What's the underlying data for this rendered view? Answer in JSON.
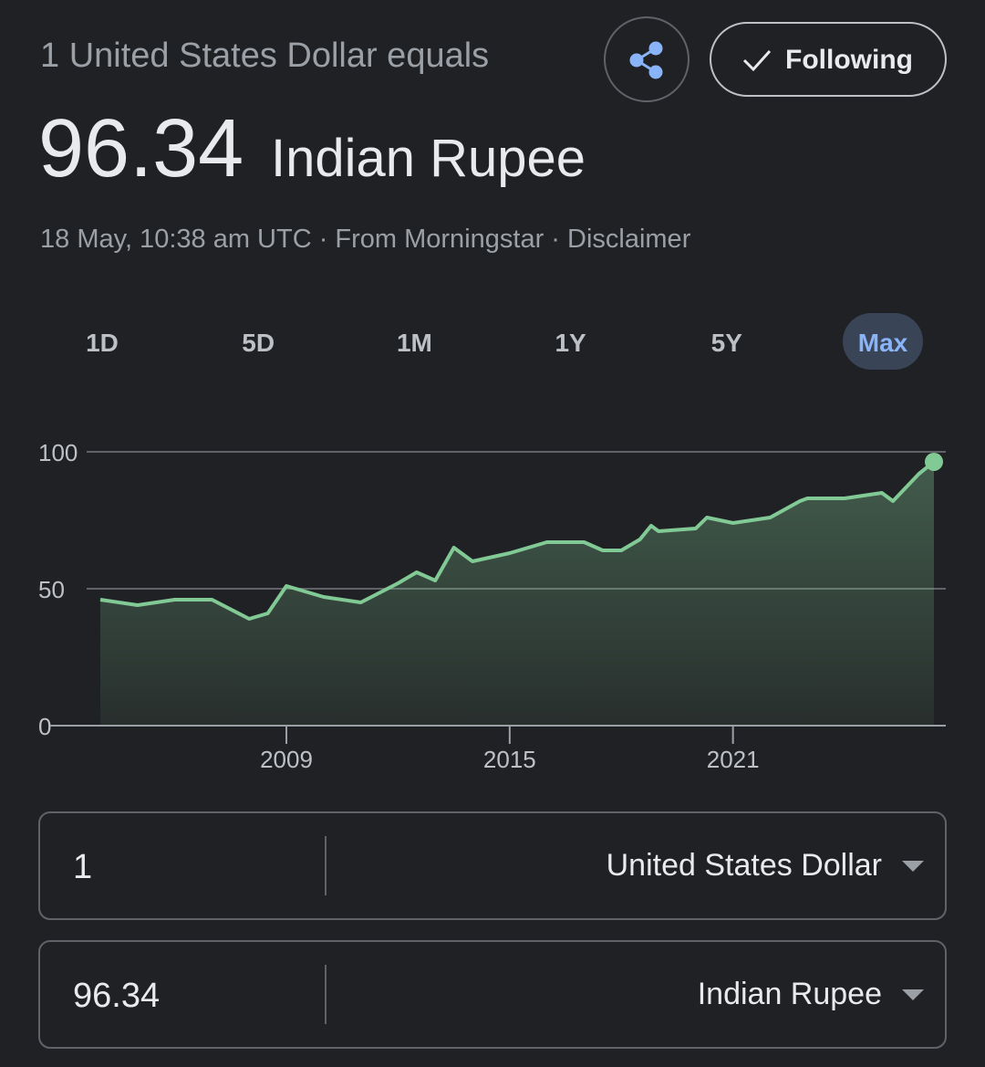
{
  "header": {
    "subtitle": "1 United States Dollar equals",
    "rate": "96.34",
    "currency": "Indian Rupee",
    "meta": "18 May, 10:38 am UTC · From Morningstar · Disclaimer",
    "follow_button": "Following"
  },
  "ranges": [
    "1D",
    "5D",
    "1M",
    "1Y",
    "5Y",
    "Max"
  ],
  "selected_range": "Max",
  "chart_data": {
    "type": "line",
    "color": "#81c995",
    "x": [
      2004,
      2005,
      2006,
      2007,
      2008,
      2008.5,
      2009,
      2010,
      2011,
      2012,
      2012.5,
      2013,
      2013.5,
      2014,
      2015,
      2016,
      2017,
      2017.5,
      2018,
      2018.5,
      2018.8,
      2019,
      2020,
      2020.3,
      2021,
      2022,
      2022.8,
      2023,
      2024,
      2025,
      2025.3,
      2026,
      2026.4
    ],
    "series": [
      {
        "values": [
          46,
          44,
          46,
          46,
          39,
          41,
          51,
          47,
          45,
          52,
          56,
          53,
          65,
          60,
          63,
          67,
          67,
          64,
          64,
          68,
          73,
          71,
          72,
          76,
          74,
          76,
          82,
          83,
          83,
          85,
          82,
          92,
          96.34
        ]
      }
    ],
    "xlim": [
      2004,
      2026.4
    ],
    "xticks": [
      2009,
      2015,
      2021
    ],
    "ylim": [
      0,
      100
    ],
    "yticks": [
      0,
      50,
      100
    ],
    "grid": true
  },
  "converter": [
    {
      "amount": "1",
      "currency": "United States Dollar"
    },
    {
      "amount": "96.34",
      "currency": "Indian Rupee"
    }
  ]
}
